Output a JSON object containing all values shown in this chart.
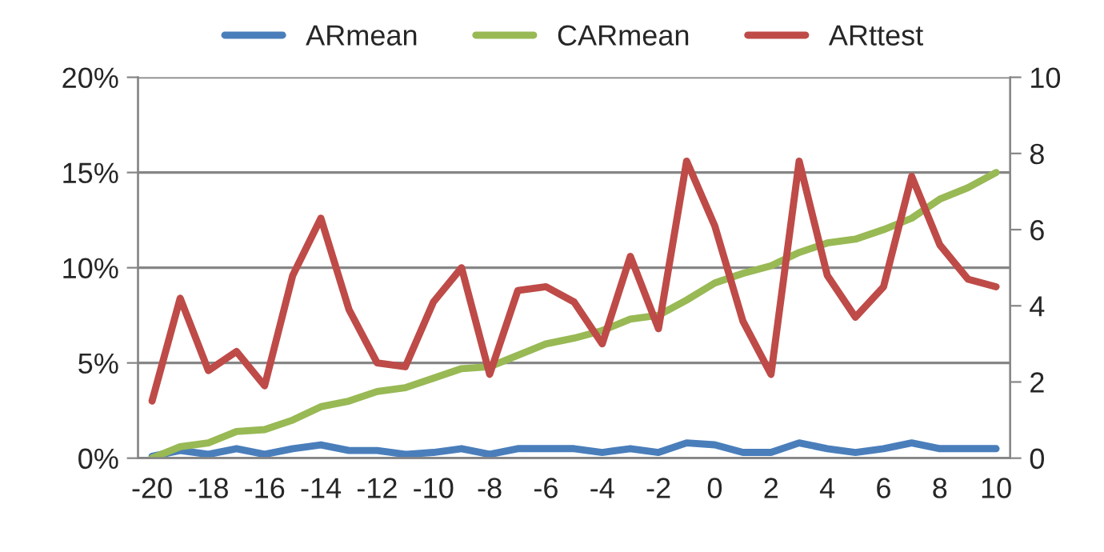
{
  "chart_data": {
    "type": "line",
    "x": [
      -20,
      -19,
      -18,
      -17,
      -16,
      -15,
      -14,
      -13,
      -12,
      -11,
      -10,
      -9,
      -8,
      -7,
      -6,
      -5,
      -4,
      -3,
      -2,
      -1,
      0,
      1,
      2,
      3,
      4,
      5,
      6,
      7,
      8,
      9,
      10
    ],
    "series": [
      {
        "name": "ARmean",
        "color": "#4a7ebb",
        "values": [
          0.1,
          0.4,
          0.2,
          0.5,
          0.2,
          0.5,
          0.7,
          0.4,
          0.4,
          0.2,
          0.3,
          0.5,
          0.2,
          0.5,
          0.5,
          0.5,
          0.3,
          0.5,
          0.3,
          0.8,
          0.7,
          0.3,
          0.3,
          0.8,
          0.5,
          0.3,
          0.5,
          0.8,
          0.5,
          0.5,
          0.5
        ]
      },
      {
        "name": "CARmean",
        "color": "#98b954",
        "values": [
          0.0,
          0.6,
          0.8,
          1.4,
          1.5,
          2.0,
          2.7,
          3.0,
          3.5,
          3.7,
          4.2,
          4.7,
          4.8,
          5.4,
          6.0,
          6.3,
          6.7,
          7.3,
          7.5,
          8.3,
          9.2,
          9.7,
          10.1,
          10.8,
          11.3,
          11.5,
          12.0,
          12.6,
          13.6,
          14.2,
          15.0
        ]
      },
      {
        "name": "ARttest",
        "color": "#be4b48",
        "axis": "y2",
        "values": [
          1.5,
          4.2,
          2.3,
          2.8,
          1.9,
          4.8,
          6.3,
          3.9,
          2.5,
          2.4,
          4.1,
          5.0,
          2.2,
          4.4,
          4.5,
          4.1,
          3.0,
          5.3,
          3.4,
          7.8,
          6.1,
          3.6,
          2.2,
          7.8,
          4.8,
          3.7,
          4.5,
          7.4,
          5.6,
          4.7,
          4.5
        ]
      }
    ],
    "xlim": [
      -20.5,
      10.5
    ],
    "xticks": [
      -20,
      -18,
      -16,
      -14,
      -12,
      -10,
      -8,
      -6,
      -4,
      -2,
      0,
      2,
      4,
      6,
      8,
      10
    ],
    "ylim": [
      0,
      20
    ],
    "yticks": [
      {
        "value": 0,
        "label": "0%"
      },
      {
        "value": 5,
        "label": "5%"
      },
      {
        "value": 10,
        "label": "10%"
      },
      {
        "value": 15,
        "label": "15%"
      },
      {
        "value": 20,
        "label": "20%"
      }
    ],
    "y2lim": [
      0,
      10
    ],
    "y2ticks": [
      0,
      2,
      4,
      6,
      8,
      10
    ],
    "grid": "y",
    "legend": "top",
    "marker": "none",
    "line_style": "solid"
  }
}
